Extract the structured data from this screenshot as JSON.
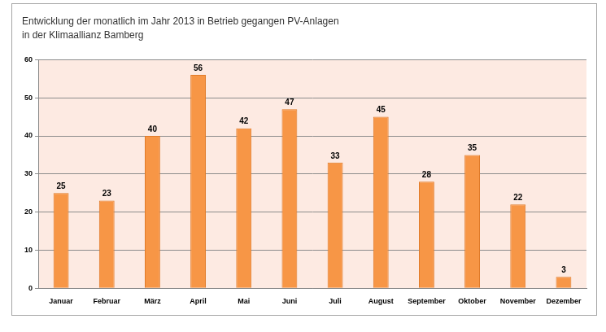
{
  "chart_data": {
    "type": "bar",
    "title": [
      "Entwicklung der monatlich im Jahr 2013 in Betrieb gegangen PV-Anlagen",
      "in der Klimaallianz Bamberg"
    ],
    "categories": [
      "Januar",
      "Februar",
      "März",
      "April",
      "Mai",
      "Juni",
      "Juli",
      "August",
      "September",
      "Oktober",
      "November",
      "Dezember"
    ],
    "values": [
      25,
      23,
      40,
      56,
      42,
      47,
      33,
      45,
      28,
      35,
      22,
      3
    ],
    "color": "#f79646",
    "ylim": [
      0,
      60
    ],
    "yticks": [
      0,
      10,
      20,
      30,
      40,
      50,
      60
    ],
    "grid": true,
    "data_labels": true
  }
}
